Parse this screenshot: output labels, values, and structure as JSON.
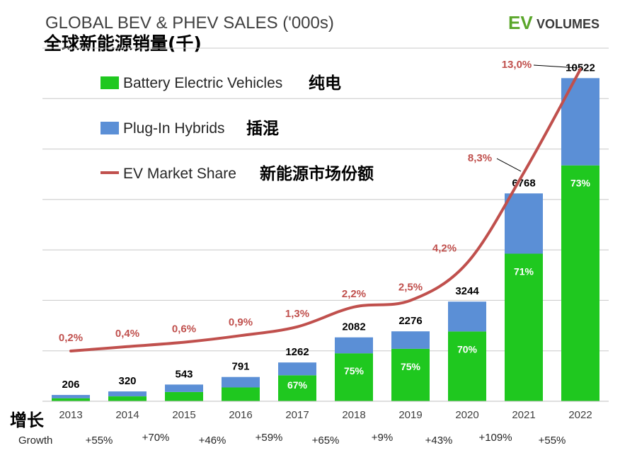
{
  "header": {
    "title_en": "GLOBAL BEV & PHEV SALES ('000s)",
    "title_cn": "全球新能源销量(千)",
    "brand_ev": "EV",
    "brand_rest": "VOLUMES"
  },
  "legend": {
    "bev": {
      "label": "Battery Electric Vehicles",
      "label_cn": "纯电"
    },
    "phev": {
      "label": "Plug-In Hybrids",
      "label_cn": "插混"
    },
    "share": {
      "label": "EV Market Share",
      "label_cn": "新能源市场份额"
    }
  },
  "growth_row": {
    "label_cn": "增长",
    "label": "Growth",
    "values": [
      "+55%",
      "+70%",
      "+46%",
      "+59%",
      "+65%",
      "+9%",
      "+43%",
      "+109%",
      "+55%"
    ]
  },
  "colors": {
    "bev": "#1fc81f",
    "phev": "#5b8fd6",
    "share": "#c0504d",
    "grid": "#c8c8c8"
  },
  "chart_data": {
    "type": "bar",
    "title": "GLOBAL BEV & PHEV SALES ('000s)",
    "categories": [
      "2013",
      "2014",
      "2015",
      "2016",
      "2017",
      "2018",
      "2019",
      "2020",
      "2021",
      "2022"
    ],
    "totals": [
      206,
      320,
      543,
      791,
      1262,
      2082,
      2276,
      3244,
      6768,
      10522
    ],
    "total_labels": [
      "206",
      "320",
      "543",
      "791",
      "1262",
      "2082",
      "2276",
      "3244",
      "6768",
      "10522"
    ],
    "series": [
      {
        "name": "Battery Electric Vehicles",
        "values": [
          100,
          160,
          300,
          450,
          846,
          1562,
          1707,
          2271,
          4805,
          7681
        ]
      },
      {
        "name": "Plug-In Hybrids",
        "values": [
          106,
          160,
          243,
          341,
          416,
          520,
          569,
          973,
          1963,
          2841
        ]
      }
    ],
    "bev_share_labels": [
      "",
      "",
      "",
      "",
      "67%",
      "75%",
      "75%",
      "70%",
      "71%",
      "73%"
    ],
    "market_share": {
      "name": "EV Market Share",
      "values": [
        0.2,
        0.4,
        0.6,
        0.9,
        1.3,
        2.2,
        2.5,
        4.2,
        8.3,
        13.0
      ],
      "labels": [
        "0,2%",
        "0,4%",
        "0,6%",
        "0,9%",
        "1,3%",
        "2,2%",
        "2,5%",
        "4,2%",
        "8,3%",
        "13,0%"
      ],
      "ylim": [
        0,
        14
      ]
    },
    "ylim": [
      0,
      11500
    ],
    "grid": true,
    "legend_position": "top-left"
  }
}
